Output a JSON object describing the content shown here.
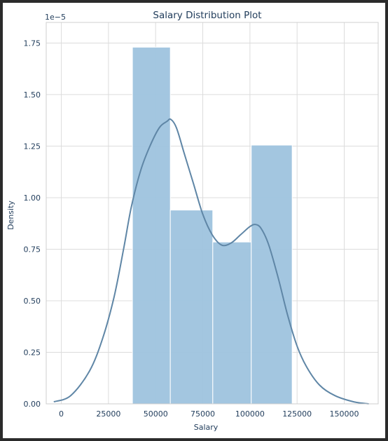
{
  "chart_data": {
    "type": "bar",
    "title": "Salary Distribution Plot",
    "xlabel": "Salary",
    "ylabel": "Density",
    "offset_text": "1e−5",
    "xlim": [
      -8000,
      168000
    ],
    "ylim": [
      0,
      1.85
    ],
    "x_ticks": [
      0,
      25000,
      50000,
      75000,
      100000,
      125000,
      150000
    ],
    "x_tick_labels": [
      "0",
      "25000",
      "50000",
      "75000",
      "100000",
      "125000",
      "150000"
    ],
    "y_ticks": [
      0,
      0.25,
      0.5,
      0.75,
      1.0,
      1.25,
      1.5,
      1.75
    ],
    "y_tick_labels": [
      "0.00",
      "0.25",
      "0.50",
      "0.75",
      "1.00",
      "1.25",
      "1.50",
      "1.75"
    ],
    "grid": true,
    "histogram": {
      "bins": [
        {
          "x0": 37700,
          "x1": 57800,
          "density": 1.73
        },
        {
          "x0": 57800,
          "x1": 80300,
          "density": 0.94
        },
        {
          "x0": 80300,
          "x1": 100700,
          "density": 0.785
        },
        {
          "x0": 100700,
          "x1": 122400,
          "density": 1.255
        }
      ],
      "color": "#9ec3de"
    },
    "kde": {
      "color": "#5f86a6",
      "x": [
        -4000,
        5000,
        15000,
        22000,
        28000,
        33000,
        37000,
        42000,
        47000,
        52000,
        56000,
        58000,
        61000,
        65000,
        70000,
        75000,
        80000,
        85000,
        90000,
        95000,
        100000,
        103000,
        106000,
        110000,
        115000,
        120000,
        125000,
        130000,
        137000,
        145000,
        155000,
        163000
      ],
      "y": [
        0.01,
        0.04,
        0.16,
        0.32,
        0.52,
        0.75,
        0.95,
        1.13,
        1.25,
        1.34,
        1.37,
        1.38,
        1.34,
        1.22,
        1.07,
        0.92,
        0.82,
        0.77,
        0.78,
        0.82,
        0.86,
        0.87,
        0.85,
        0.77,
        0.61,
        0.43,
        0.28,
        0.18,
        0.09,
        0.04,
        0.01,
        0.0
      ]
    }
  }
}
